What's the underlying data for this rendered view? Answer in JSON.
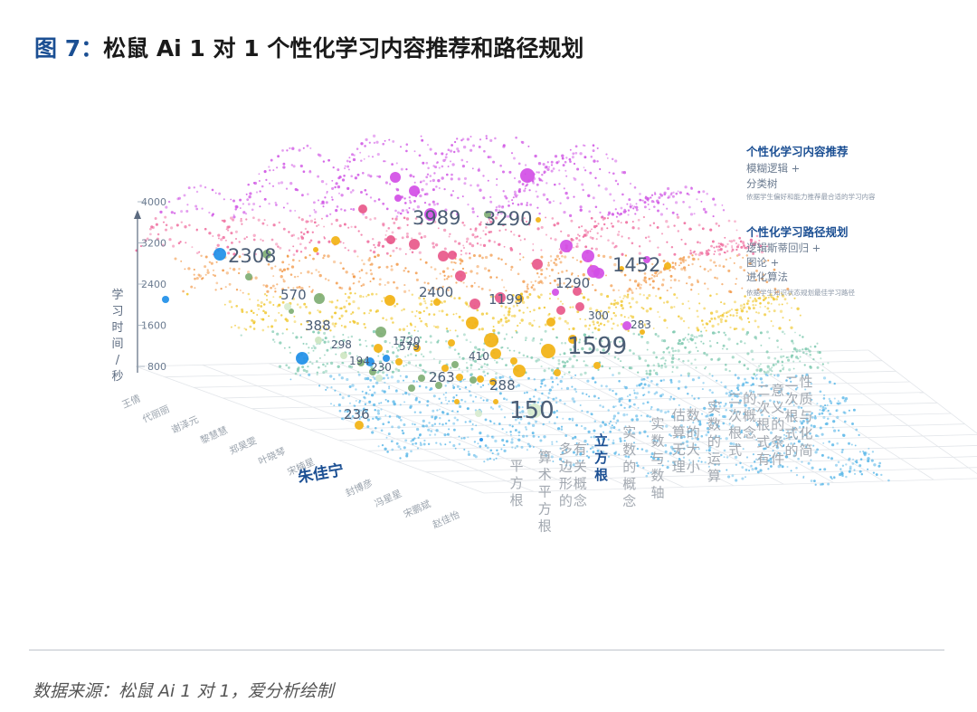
{
  "title": {
    "figure_label": "图 7：",
    "text": "松鼠 Ai 1 对 1 个性化学习内容推荐和路径规划"
  },
  "source": "数据来源：松鼠 Ai 1 对 1，爱分析绘制",
  "chart_data": {
    "type": "scatter",
    "title": "松鼠 Ai 1 对 1 个性化学习内容推荐和路径规划",
    "ylabel": "学习时间/秒",
    "y_ticks": [
      "4000",
      "3200",
      "2400",
      "1600",
      "800"
    ],
    "ylim": [
      0,
      4000
    ],
    "students": [
      "王倩",
      "代丽丽",
      "谢泽元",
      "黎慧慧",
      "郑昊雯",
      "叶晓琴",
      "宋楠星",
      "朱佳宁",
      "封博彦",
      "冯星星",
      "宋鹏斌",
      "赵佳怡"
    ],
    "highlight_student": "朱佳宁",
    "topics": [
      "平方根",
      "算术平方根",
      "多边形的有关概念",
      "立方根",
      "实数的概念",
      "实数与数轴",
      "估算无理数的大小",
      "实数的运算",
      "二次根式的概念",
      "二次根式有意义的条件",
      "二次根式的性质与化简"
    ],
    "highlight_topic": "立方根",
    "value_labels": [
      {
        "value": "3989",
        "size": "large"
      },
      {
        "value": "3290",
        "size": "large"
      },
      {
        "value": "2308",
        "size": "large"
      },
      {
        "value": "1452",
        "size": "large"
      },
      {
        "value": "1599",
        "size": "xlarge"
      },
      {
        "value": "150",
        "size": "xlarge"
      },
      {
        "value": "1290",
        "size": "medium"
      },
      {
        "value": "1199",
        "size": "medium"
      },
      {
        "value": "2400",
        "size": "medium"
      },
      {
        "value": "570",
        "size": "medium"
      },
      {
        "value": "388",
        "size": "medium"
      },
      {
        "value": "298",
        "size": "small"
      },
      {
        "value": "1720",
        "size": "small"
      },
      {
        "value": "194",
        "size": "small"
      },
      {
        "value": "230",
        "size": "small"
      },
      {
        "value": "579",
        "size": "small"
      },
      {
        "value": "263",
        "size": "medium"
      },
      {
        "value": "410",
        "size": "small"
      },
      {
        "value": "288",
        "size": "medium"
      },
      {
        "value": "300",
        "size": "small"
      },
      {
        "value": "283",
        "size": "small"
      },
      {
        "value": "236",
        "size": "medium"
      }
    ],
    "legend": {
      "content_title": "个性化学习内容推荐",
      "content_methods": [
        "模糊逻辑 +",
        "分类树"
      ],
      "content_desc": "依据学生偏好和能力推荐最合适的学习内容",
      "path_title": "个性化学习路径规划",
      "path_methods": [
        "逻辑斯蒂回归 +",
        "图论 +",
        "进化算法"
      ],
      "path_desc": "依据学生知识状态规划最佳学习路径"
    },
    "colors": {
      "pink": "#d24ee6",
      "rose": "#e8588a",
      "orange": "#f2b212",
      "green": "#7fae74",
      "blue": "#1f8fe8",
      "navy": "#1b4f93"
    }
  }
}
